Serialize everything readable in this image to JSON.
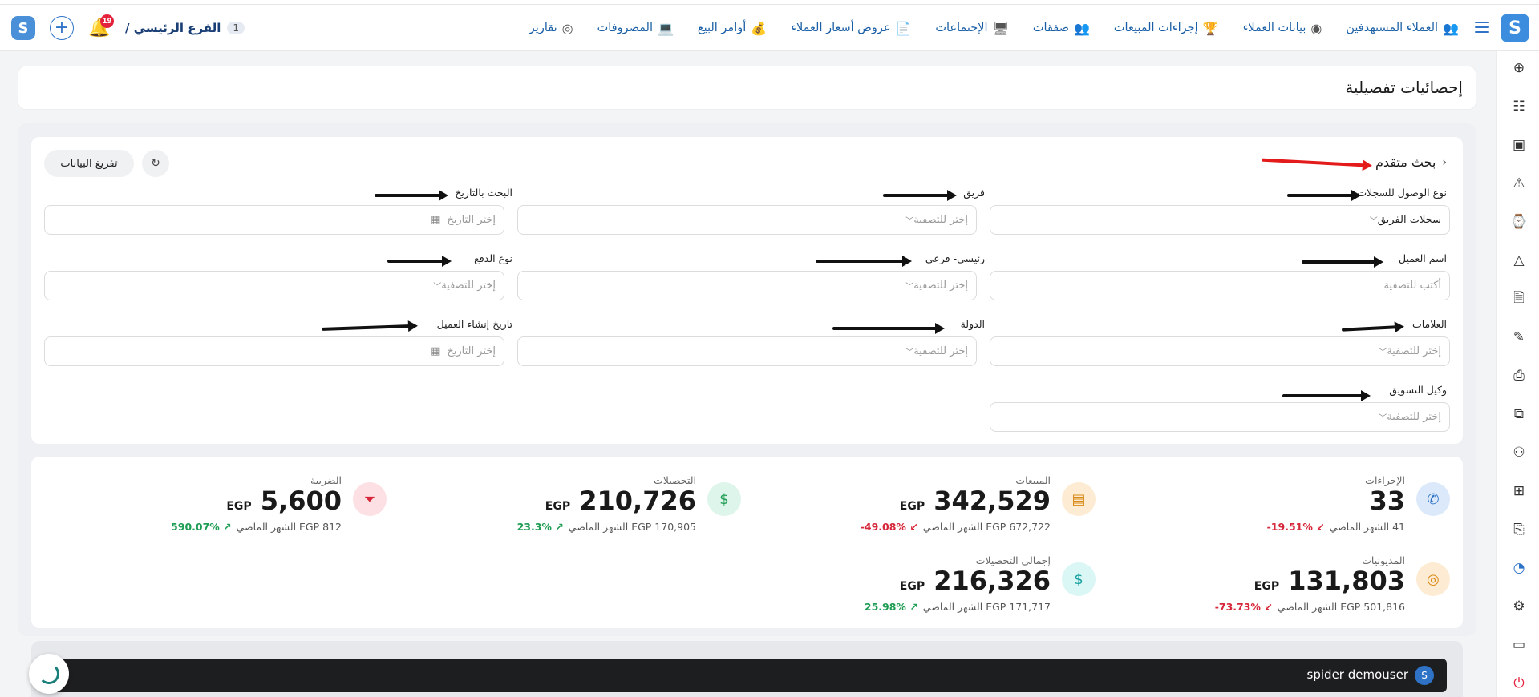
{
  "branch": {
    "name": "الفرع الرئيسي /",
    "count": "1"
  },
  "notifications": {
    "count": "19"
  },
  "nav": [
    {
      "label": "العملاء المستهدفين",
      "icon": "target-customers-icon",
      "glyph": "👥"
    },
    {
      "label": "بيانات العملاء",
      "icon": "customer-data-icon",
      "glyph": "◉"
    },
    {
      "label": "إجراءات المبيعات",
      "icon": "sales-actions-icon",
      "glyph": "🏆"
    },
    {
      "label": "صفقات",
      "icon": "deals-icon",
      "glyph": "👥"
    },
    {
      "label": "الإجتماعات",
      "icon": "meetings-icon",
      "glyph": "🖥"
    },
    {
      "label": "عروض أسعار العملاء",
      "icon": "price-quotes-icon",
      "glyph": "📄"
    },
    {
      "label": "أوامر البيع",
      "icon": "sales-orders-icon",
      "glyph": "💰"
    },
    {
      "label": "المصروفات",
      "icon": "expenses-icon",
      "glyph": "💻"
    },
    {
      "label": "تقارير",
      "icon": "reports-icon",
      "glyph": "◎"
    }
  ],
  "page_title": "إحصائيات تفصيلية",
  "search": {
    "title": "بحث متقدم",
    "reset_label": "تفريغ البيانات",
    "fields": {
      "access_type": {
        "label": "نوع الوصول للسجلات",
        "value": "سجلات الفريق"
      },
      "team": {
        "label": "فريق",
        "placeholder": "إختر للتصفية"
      },
      "date_search": {
        "label": "البحث بالتاريخ",
        "placeholder": "إختر التاريخ"
      },
      "customer_name": {
        "label": "اسم العميل",
        "placeholder": "أكتب للتصفية"
      },
      "main_sub": {
        "label": "رئيسي- فرعي",
        "placeholder": "إختر للتصفية"
      },
      "payment_type": {
        "label": "نوع الدفع",
        "placeholder": "إختر للتصفية"
      },
      "tags": {
        "label": "العلامات",
        "placeholder": "إختر للتصفية"
      },
      "country": {
        "label": "الدولة",
        "placeholder": "إختر للتصفية"
      },
      "customer_created": {
        "label": "تاريخ إنشاء العميل",
        "placeholder": "إختر التاريخ"
      },
      "marketing_agent": {
        "label": "وكيل التسويق",
        "placeholder": "إختر للتصفية"
      }
    }
  },
  "stats": {
    "actions": {
      "label": "الإجراءات",
      "value": "33",
      "prev": "41 الشهر الماضي",
      "pct": "19.51%-",
      "trend": "down",
      "color": "#dbe9fb",
      "icon_color": "#2f73c7"
    },
    "sales": {
      "label": "المبيعات",
      "value": "342,529",
      "currency": "EGP",
      "prev": "672,722 EGP الشهر الماضي",
      "pct": "49.08%-",
      "trend": "down",
      "color": "#fdecd3",
      "icon_color": "#d98a16"
    },
    "collections": {
      "label": "التحصيلات",
      "value": "210,726",
      "currency": "EGP",
      "prev": "170,905 EGP الشهر الماضي",
      "pct": "23.3%",
      "trend": "up",
      "color": "#ddf5ea",
      "icon_color": "#1f9d55"
    },
    "tax": {
      "label": "الضريبة",
      "value": "5,600",
      "currency": "EGP",
      "prev": "812 EGP الشهر الماضي",
      "pct": "590.07%",
      "trend": "up",
      "color": "#fde0e4",
      "icon_color": "#d6283a"
    },
    "debts": {
      "label": "المديونيات",
      "value": "131,803",
      "currency": "EGP",
      "prev": "501,816 EGP الشهر الماضي",
      "pct": "73.73%-",
      "trend": "down",
      "color": "#fdecd3",
      "icon_color": "#d98a16"
    },
    "total_collections": {
      "label": "إجمالي التحصيلات",
      "value": "216,326",
      "currency": "EGP",
      "prev": "171,717 EGP الشهر الماضي",
      "pct": "25.98%",
      "trend": "up",
      "color": "#daf6f5",
      "icon_color": "#17a2a0"
    }
  },
  "user": {
    "name": "spider demouser",
    "initial": "S"
  }
}
